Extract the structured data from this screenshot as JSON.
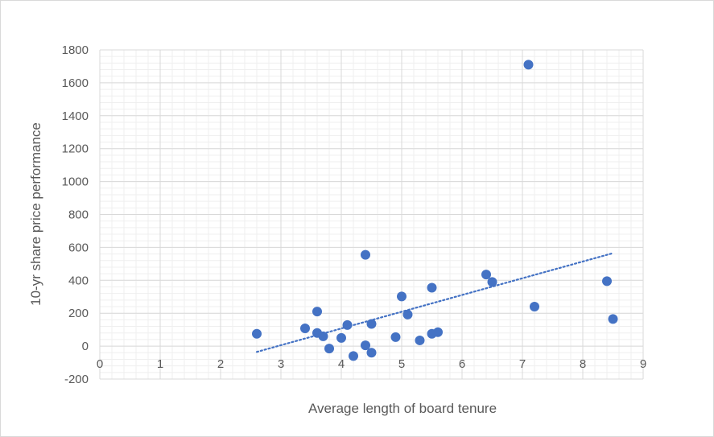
{
  "chart_data": {
    "type": "scatter",
    "title": "",
    "xlabel": "Average length of board tenure",
    "ylabel": "10-yr share price performance",
    "xlim": [
      0,
      9
    ],
    "ylim": [
      -200,
      1800
    ],
    "x_ticks": [
      "0",
      "1",
      "2",
      "3",
      "4",
      "5",
      "6",
      "7",
      "8",
      "9"
    ],
    "y_ticks": [
      "-200",
      "0",
      "200",
      "400",
      "600",
      "800",
      "1000",
      "1200",
      "1400",
      "1600",
      "1800"
    ],
    "grid": "major and minor gridlines",
    "series": [
      {
        "color": "#4472c4",
        "points": [
          {
            "x": 2.6,
            "y": 75
          },
          {
            "x": 3.4,
            "y": 108
          },
          {
            "x": 3.6,
            "y": 210
          },
          {
            "x": 3.6,
            "y": 80
          },
          {
            "x": 3.7,
            "y": 60
          },
          {
            "x": 3.8,
            "y": -15
          },
          {
            "x": 4.0,
            "y": 50
          },
          {
            "x": 4.1,
            "y": 128
          },
          {
            "x": 4.2,
            "y": -60
          },
          {
            "x": 4.4,
            "y": 555
          },
          {
            "x": 4.4,
            "y": 5
          },
          {
            "x": 4.5,
            "y": 135
          },
          {
            "x": 4.5,
            "y": -40
          },
          {
            "x": 4.9,
            "y": 55
          },
          {
            "x": 5.0,
            "y": 302
          },
          {
            "x": 5.1,
            "y": 192
          },
          {
            "x": 5.3,
            "y": 35
          },
          {
            "x": 5.5,
            "y": 355
          },
          {
            "x": 5.5,
            "y": 75
          },
          {
            "x": 5.6,
            "y": 85
          },
          {
            "x": 6.4,
            "y": 435
          },
          {
            "x": 6.5,
            "y": 390
          },
          {
            "x": 7.1,
            "y": 1710
          },
          {
            "x": 7.2,
            "y": 240
          },
          {
            "x": 8.4,
            "y": 395
          },
          {
            "x": 8.5,
            "y": 165
          }
        ]
      }
    ],
    "trendline": {
      "type": "linear",
      "style": "dotted",
      "color": "#4472c4",
      "x": [
        2.6,
        8.5
      ],
      "y": [
        -35,
        565
      ]
    }
  }
}
